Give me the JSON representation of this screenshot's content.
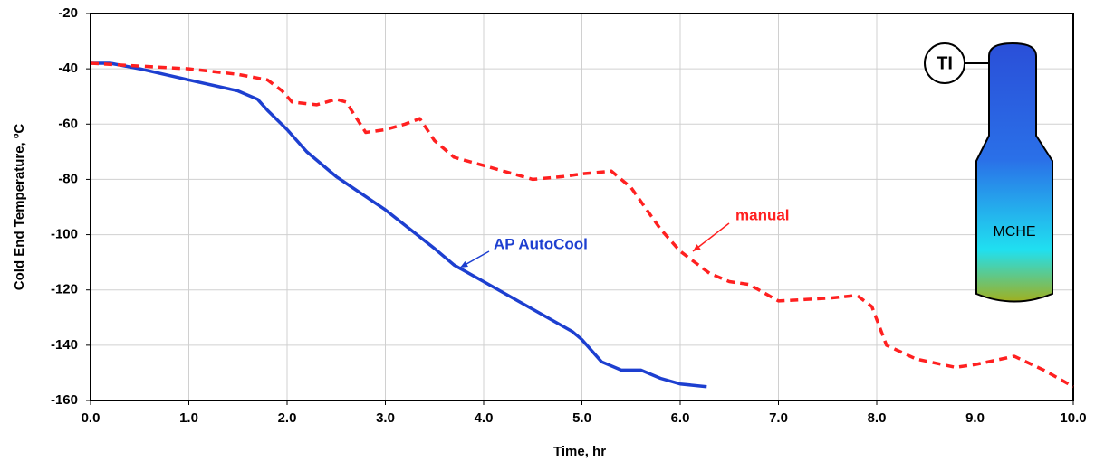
{
  "chart_data": {
    "type": "line",
    "x_label": "Time, hr",
    "y_label": "Cold End Temperature, ºC",
    "xlim": [
      0,
      10
    ],
    "ylim": [
      -160,
      -20
    ],
    "xticks": [
      {
        "value": 0,
        "label": "0.0"
      },
      {
        "value": 1,
        "label": "1.0"
      },
      {
        "value": 2,
        "label": "2.0"
      },
      {
        "value": 3,
        "label": "3.0"
      },
      {
        "value": 4,
        "label": "4.0"
      },
      {
        "value": 5,
        "label": "5.0"
      },
      {
        "value": 6,
        "label": "6.0"
      },
      {
        "value": 7,
        "label": "7.0"
      },
      {
        "value": 8,
        "label": "8.0"
      },
      {
        "value": 9,
        "label": "9.0"
      },
      {
        "value": 10,
        "label": "10.0"
      }
    ],
    "yticks": [
      -20,
      -40,
      -60,
      -80,
      -100,
      -120,
      -140,
      -160
    ],
    "grid": true,
    "series": [
      {
        "name": "AP AutoCool",
        "color": "#1d3fd0",
        "dashed": false,
        "x": [
          0,
          0.2,
          0.5,
          1.0,
          1.5,
          1.7,
          1.8,
          2.0,
          2.2,
          2.5,
          3.0,
          3.5,
          3.7,
          4.0,
          4.5,
          4.9,
          5.0,
          5.2,
          5.4,
          5.6,
          5.8,
          6.0,
          6.27
        ],
        "values": [
          -38,
          -38,
          -40,
          -44,
          -48,
          -51,
          -55,
          -62,
          -70,
          -79,
          -91,
          -105,
          -111,
          -117,
          -127,
          -135,
          -138,
          -146,
          -149,
          -149,
          -152,
          -154,
          -155
        ]
      },
      {
        "name": "manual",
        "color": "#ff2020",
        "dashed": true,
        "x": [
          0,
          0.5,
          1.0,
          1.5,
          1.8,
          1.95,
          2.05,
          2.3,
          2.5,
          2.6,
          2.8,
          3.0,
          3.2,
          3.35,
          3.5,
          3.7,
          4.0,
          4.5,
          4.8,
          5.0,
          5.3,
          5.5,
          5.8,
          6.0,
          6.3,
          6.5,
          6.7,
          7.0,
          7.5,
          7.8,
          7.95,
          8.1,
          8.4,
          8.8,
          9.0,
          9.4,
          9.7,
          10.0
        ],
        "values": [
          -38,
          -39,
          -40,
          -42,
          -44,
          -48,
          -52,
          -53,
          -51,
          -52,
          -63,
          -62,
          -60,
          -58,
          -66,
          -72,
          -75,
          -80,
          -79,
          -78,
          -77,
          -83,
          -98,
          -106,
          -114,
          -117,
          -118,
          -124,
          -123,
          -122,
          -126,
          -140,
          -145,
          -148,
          -147,
          -144,
          -149,
          -155
        ]
      }
    ],
    "diagram_labels": [
      "TI",
      "MCHE"
    ]
  }
}
